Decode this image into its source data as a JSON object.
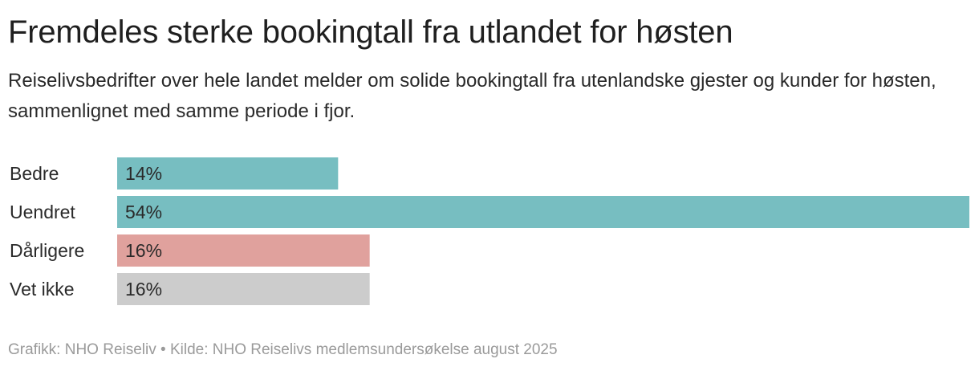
{
  "header": {
    "title": "Fremdeles sterke bookingtall fra utlandet for høsten",
    "subtitle": "Reiselivsbedrifter over hele landet melder om solide bookingtall fra utenlandske gjester og kunder for høsten, sammenlignet med samme periode i fjor."
  },
  "chart_data": {
    "type": "bar",
    "orientation": "horizontal",
    "title": "Fremdeles sterke bookingtall fra utlandet for høsten",
    "subtitle": "Reiselivsbedrifter over hele landet melder om solide bookingtall fra utenlandske gjester og kunder for høsten, sammenlignet med samme periode i fjor.",
    "categories": [
      "Bedre",
      "Uendret",
      "Dårligere",
      "Vet ikke"
    ],
    "values": [
      14,
      54,
      16,
      16
    ],
    "value_labels": [
      "14%",
      "54%",
      "16%",
      "16%"
    ],
    "unit": "%",
    "colors": [
      "#77bec1",
      "#77bec1",
      "#e0a19d",
      "#cccccc"
    ],
    "xlim": [
      0,
      54
    ],
    "grid": false,
    "legend": "none",
    "xlabel": "",
    "ylabel": ""
  },
  "footer": {
    "credit": "Grafikk: NHO Reiseliv • Kilde: NHO Reiselivs medlemsundersøkelse august 2025"
  }
}
